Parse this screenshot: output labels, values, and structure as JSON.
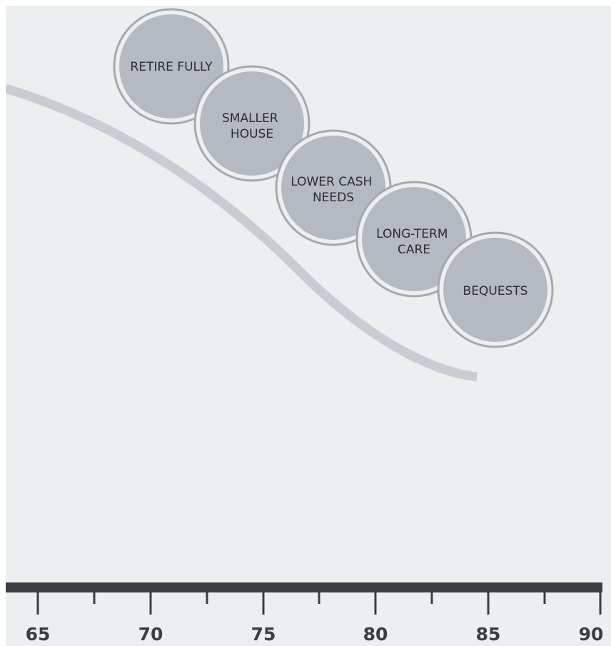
{
  "colors": {
    "background": "#ebeff0",
    "curve": "#c9cdd3",
    "bubble_fill": "#b5b9c2",
    "bubble_ring": "#a4a8b0",
    "axis": "#3b3d44",
    "text": "#2b2d33"
  },
  "bubbles": [
    {
      "lines": [
        "RETIRE FULLY"
      ]
    },
    {
      "lines": [
        "SMALLER",
        "HOUSE"
      ]
    },
    {
      "lines": [
        "LOWER CASH",
        "NEEDS"
      ]
    },
    {
      "lines": [
        "LONG-TERM",
        "CARE"
      ]
    },
    {
      "lines": [
        "BEQUESTS"
      ]
    }
  ],
  "axis": {
    "labels": [
      "65",
      "70",
      "75",
      "80",
      "85",
      "90"
    ]
  }
}
